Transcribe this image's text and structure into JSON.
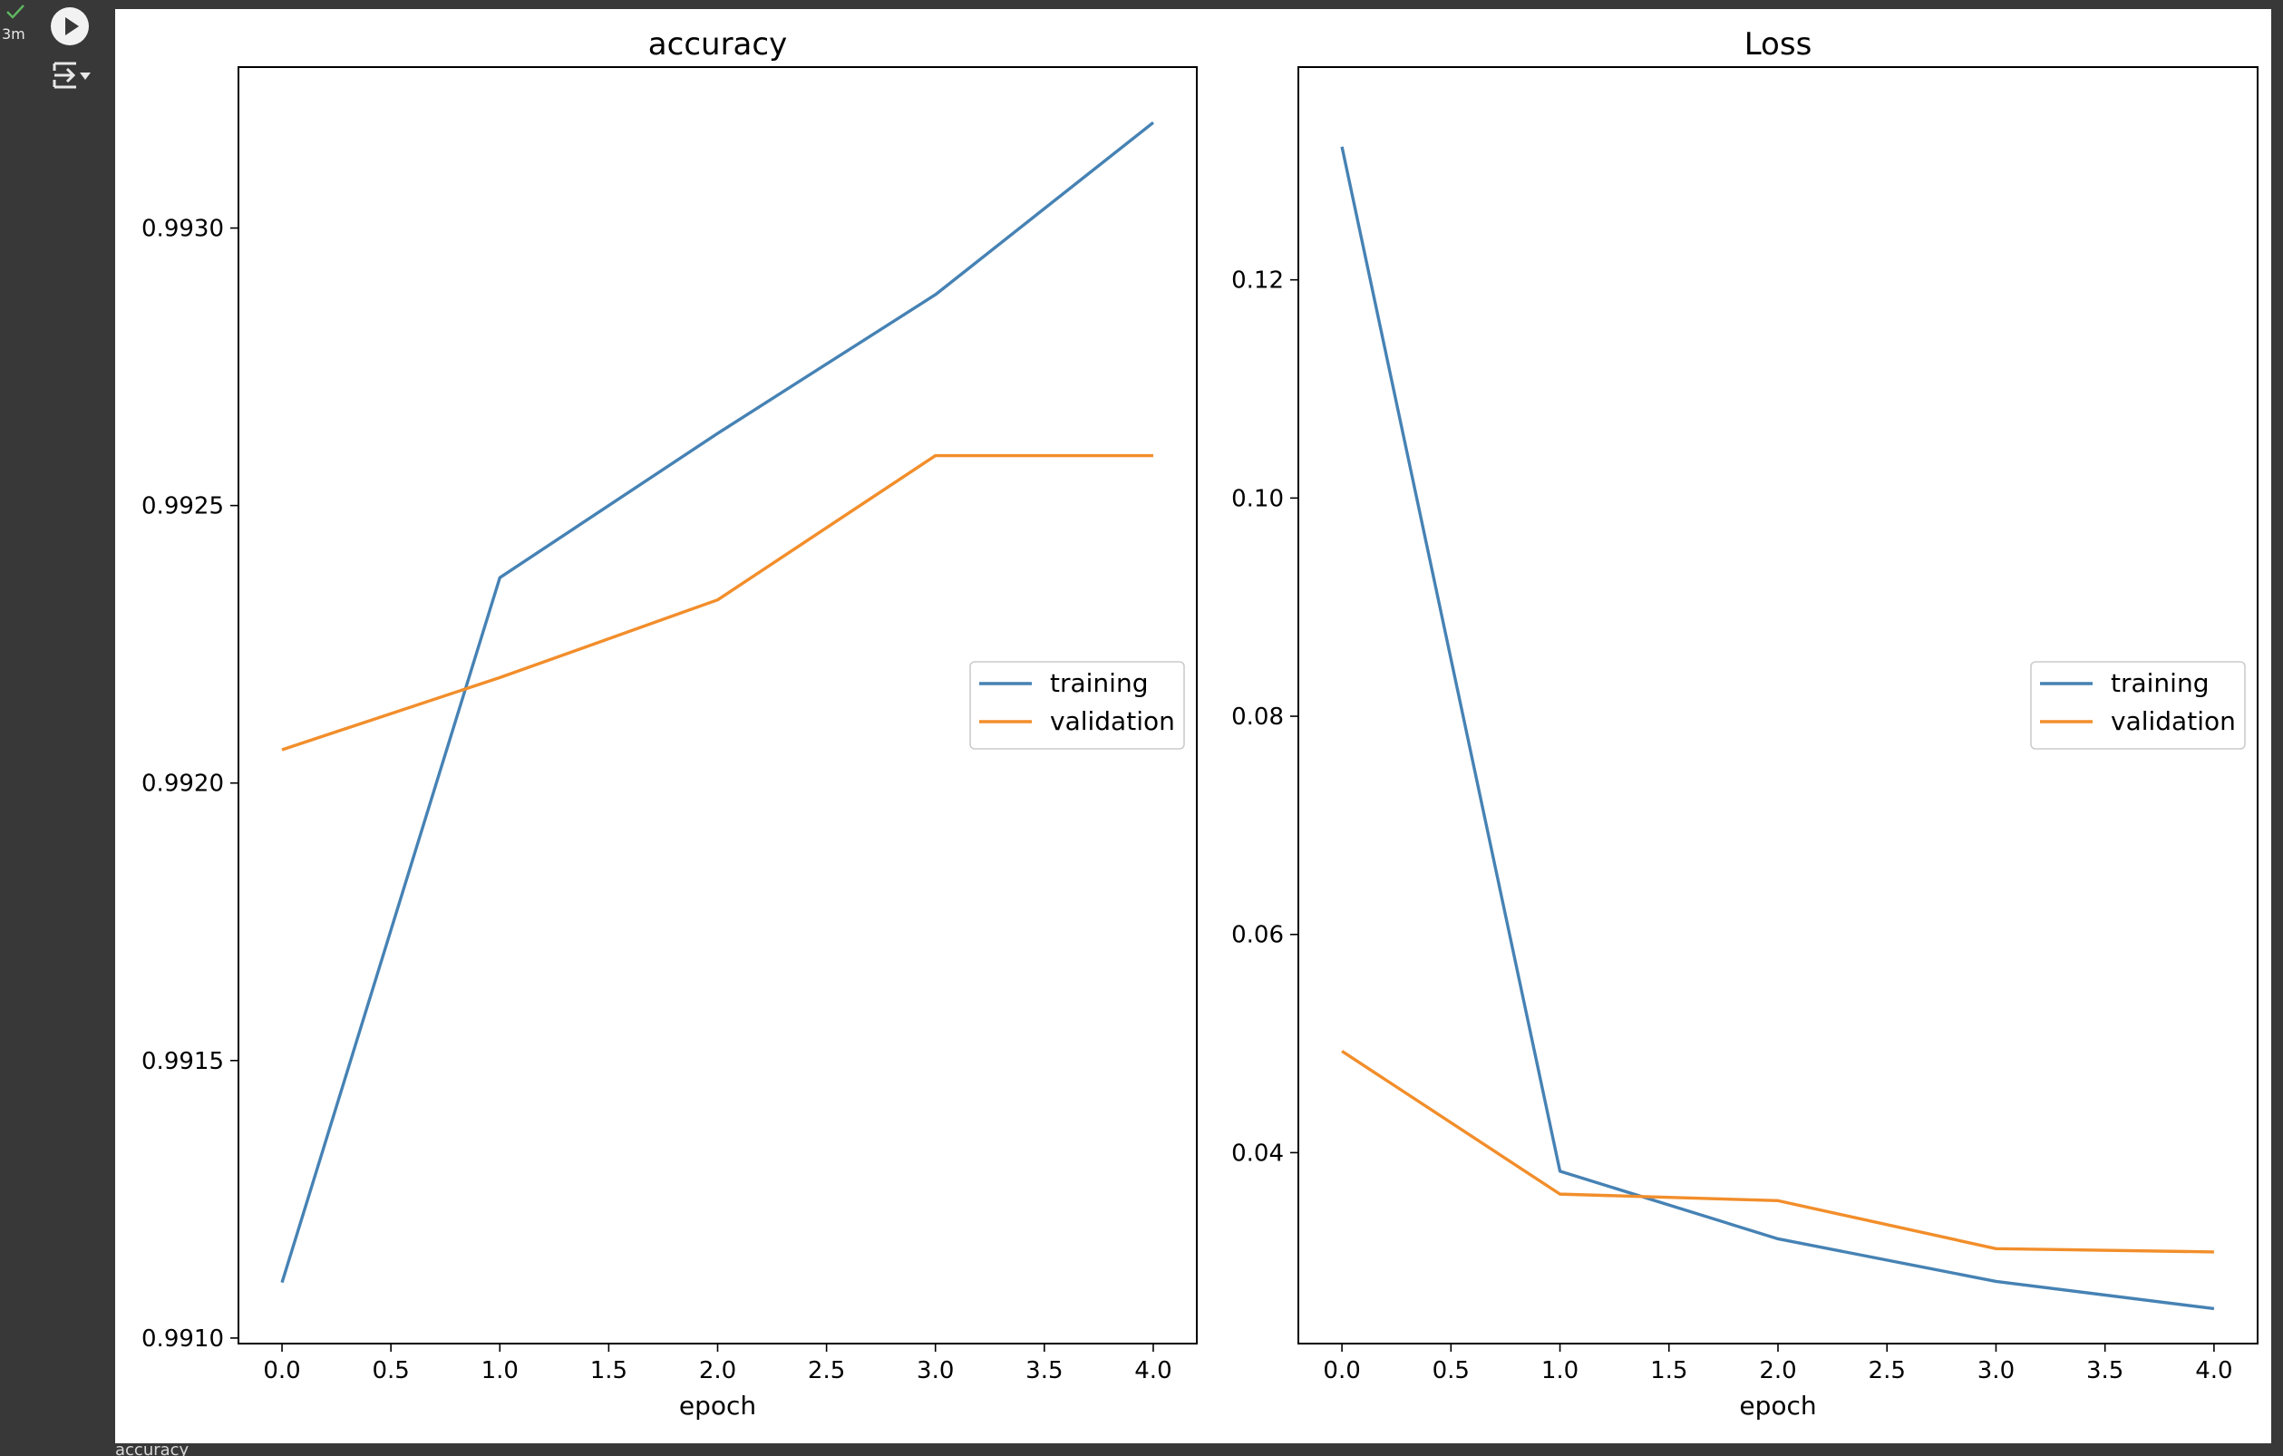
{
  "cell": {
    "exec_time": "3m",
    "status_icon": "check-icon",
    "run_icon": "play-icon",
    "output_icon": "output-toggle-icon",
    "next_output_text": "accuracy"
  },
  "colors": {
    "training": "#4682b4",
    "validation": "#f28e2b",
    "status_ok": "#5fb760"
  },
  "chart_data": [
    {
      "type": "line",
      "title": "accuracy",
      "xlabel": "epoch",
      "ylabel": "",
      "x": [
        0,
        1,
        2,
        3,
        4
      ],
      "xticks": [
        0.0,
        0.5,
        1.0,
        1.5,
        2.0,
        2.5,
        3.0,
        3.5,
        4.0
      ],
      "xtick_labels": [
        "0.0",
        "0.5",
        "1.0",
        "1.5",
        "2.0",
        "2.5",
        "3.0",
        "3.5",
        "4.0"
      ],
      "yticks": [
        0.991,
        0.9915,
        0.992,
        0.9925,
        0.993
      ],
      "ytick_labels": [
        "0.9910",
        "0.9915",
        "0.9920",
        "0.9925",
        "0.9930"
      ],
      "xlim": [
        -0.2,
        4.2
      ],
      "ylim": [
        0.99099,
        0.99329
      ],
      "legend_position": "center right",
      "grid": false,
      "series": [
        {
          "name": "training",
          "values": [
            0.9911,
            0.99237,
            0.99263,
            0.99288,
            0.99319
          ]
        },
        {
          "name": "validation",
          "values": [
            0.99206,
            0.99219,
            0.99233,
            0.99259,
            0.99259
          ]
        }
      ]
    },
    {
      "type": "line",
      "title": "Loss",
      "xlabel": "epoch",
      "ylabel": "",
      "x": [
        0,
        1,
        2,
        3,
        4
      ],
      "xticks": [
        0.0,
        0.5,
        1.0,
        1.5,
        2.0,
        2.5,
        3.0,
        3.5,
        4.0
      ],
      "xtick_labels": [
        "0.0",
        "0.5",
        "1.0",
        "1.5",
        "2.0",
        "2.5",
        "3.0",
        "3.5",
        "4.0"
      ],
      "yticks": [
        0.04,
        0.06,
        0.08,
        0.1,
        0.12
      ],
      "ytick_labels": [
        "0.04",
        "0.06",
        "0.08",
        "0.10",
        "0.12"
      ],
      "xlim": [
        -0.2,
        4.2
      ],
      "ylim": [
        0.0225,
        0.1395
      ],
      "legend_position": "center right",
      "grid": false,
      "series": [
        {
          "name": "training",
          "values": [
            0.1322,
            0.0383,
            0.0321,
            0.0282,
            0.0257
          ]
        },
        {
          "name": "validation",
          "values": [
            0.0493,
            0.0362,
            0.0356,
            0.0312,
            0.0309
          ]
        }
      ]
    }
  ]
}
